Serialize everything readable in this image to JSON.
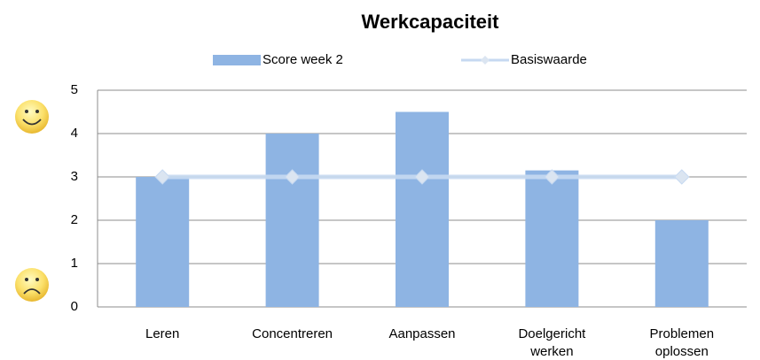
{
  "chart_data": {
    "type": "bar",
    "title": "Werkcapaciteit",
    "categories": [
      "Leren",
      "Concentreren",
      "Aanpassen",
      "Doelgericht werken",
      "Problemen oplossen"
    ],
    "series": [
      {
        "name": "Score week 2",
        "type": "bar",
        "color": "#8eb4e3",
        "values": [
          3,
          4,
          4.5,
          3.15,
          2
        ]
      },
      {
        "name": "Basiswaarde",
        "type": "line",
        "color": "#c6d9f1",
        "values": [
          3,
          3,
          3,
          3,
          3
        ]
      }
    ],
    "ylim": [
      0,
      5
    ],
    "yticks": [
      0,
      1,
      2,
      3,
      4,
      5
    ],
    "grid": true,
    "legend": "top"
  }
}
